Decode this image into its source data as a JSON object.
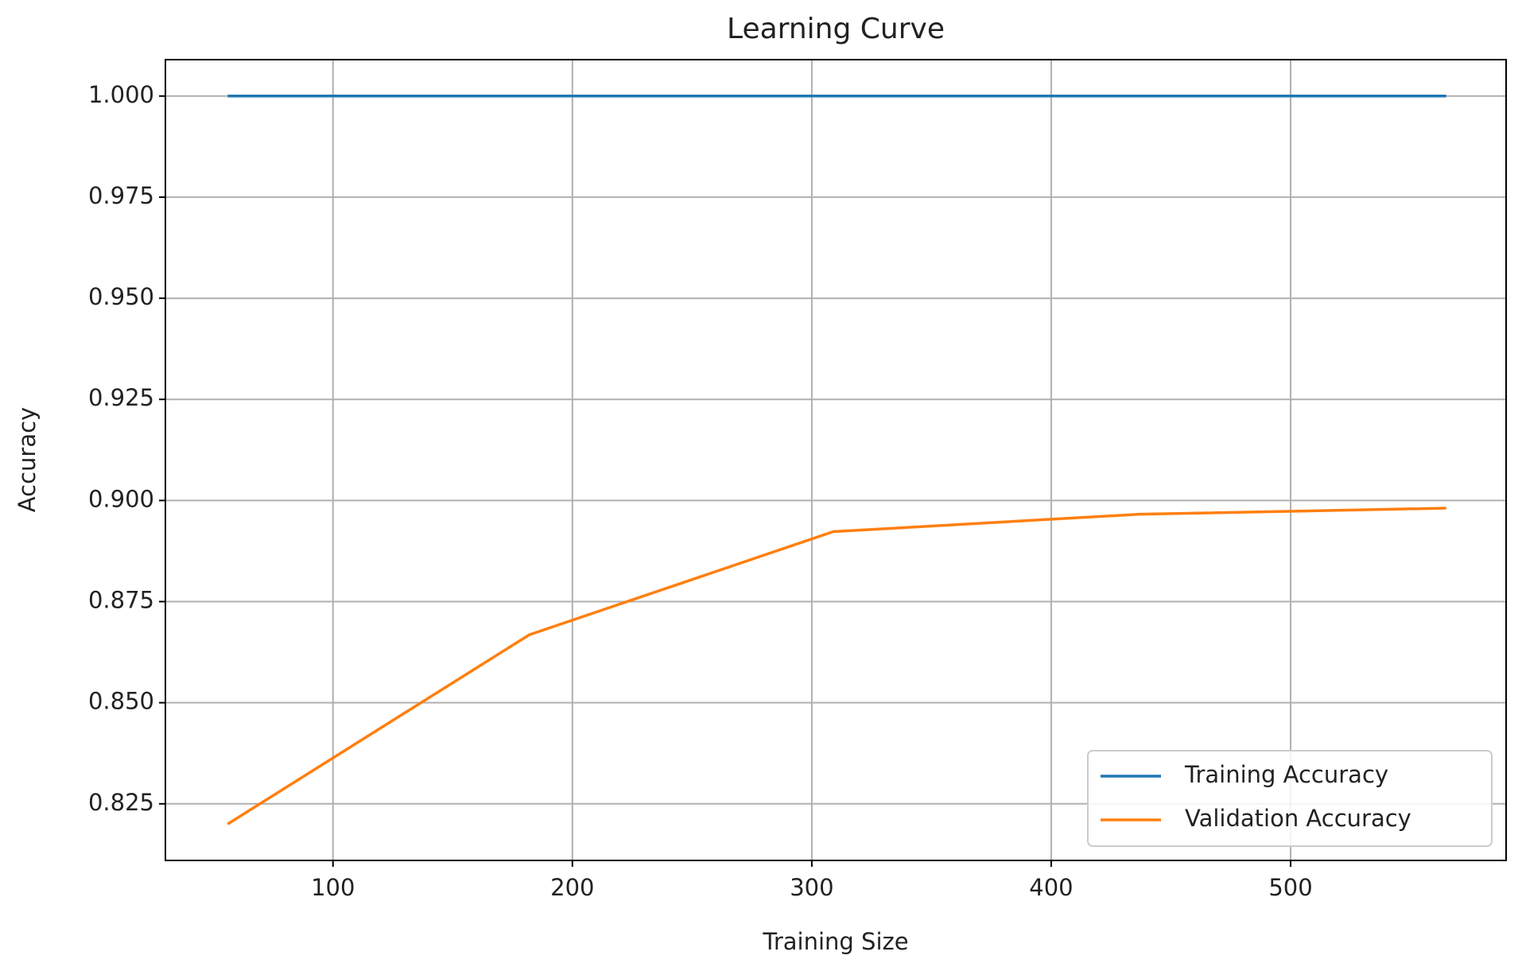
{
  "chart_data": {
    "type": "line",
    "title": "Learning Curve",
    "x_label": "Training Size",
    "y_label": "Accuracy",
    "x": [
      56,
      182,
      309,
      437,
      565
    ],
    "series": [
      {
        "name": "Training Accuracy",
        "color": "#1f77b4",
        "values": [
          1.0,
          1.0,
          1.0,
          1.0,
          1.0
        ]
      },
      {
        "name": "Validation Accuracy",
        "color": "#ff7f0e",
        "values": [
          0.82,
          0.8668,
          0.8923,
          0.8966,
          0.8981
        ]
      }
    ],
    "xlim": [
      30,
      590
    ],
    "ylim": [
      0.811,
      1.009
    ],
    "xticks": [
      100,
      200,
      300,
      400,
      500
    ],
    "yticks": [
      {
        "value": 0.825,
        "label": "0.825"
      },
      {
        "value": 0.85,
        "label": "0.850"
      },
      0.875,
      {
        "value": 0.9,
        "label": "0.900"
      },
      0.925,
      {
        "value": 0.95,
        "label": "0.950"
      },
      0.975,
      {
        "value": 1,
        "label": "1.000"
      }
    ],
    "grid": true,
    "legend": "lower right"
  }
}
